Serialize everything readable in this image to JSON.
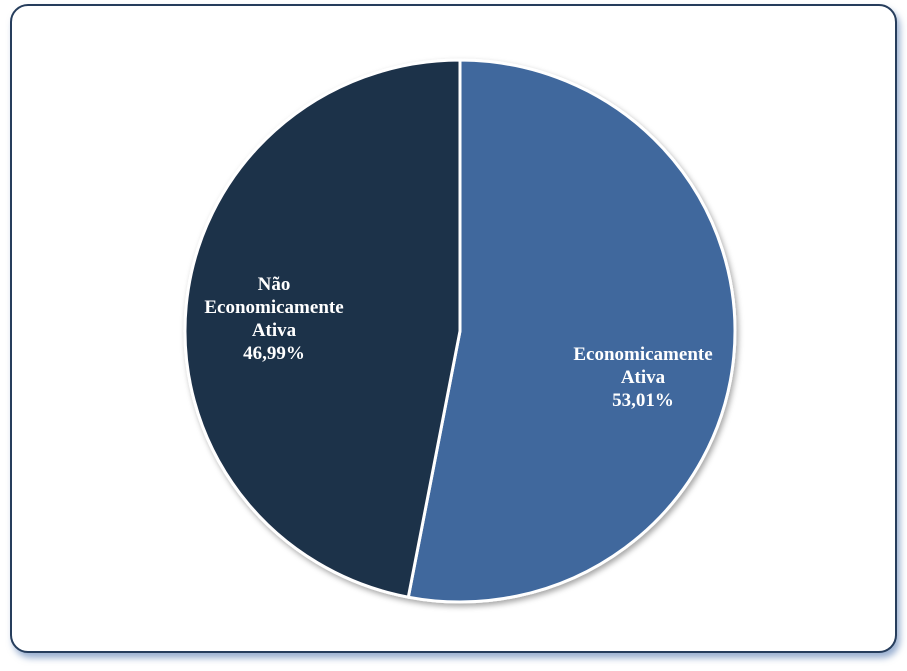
{
  "chart_data": {
    "type": "pie",
    "slices": [
      {
        "label_lines": [
          "Economicamente",
          "Ativa"
        ],
        "value_label": "53,01%",
        "value": 53.01,
        "color": "#3f689d",
        "label_color": "#ffffff"
      },
      {
        "label_lines": [
          "Não",
          "Economicamente",
          "Ativa"
        ],
        "value_label": "46,99%",
        "value": 46.99,
        "color": "#1f304a",
        "label_color": "#ffffff"
      }
    ],
    "slice_separator_color": "#ffffff",
    "frame_border_color": "#263d5c"
  }
}
